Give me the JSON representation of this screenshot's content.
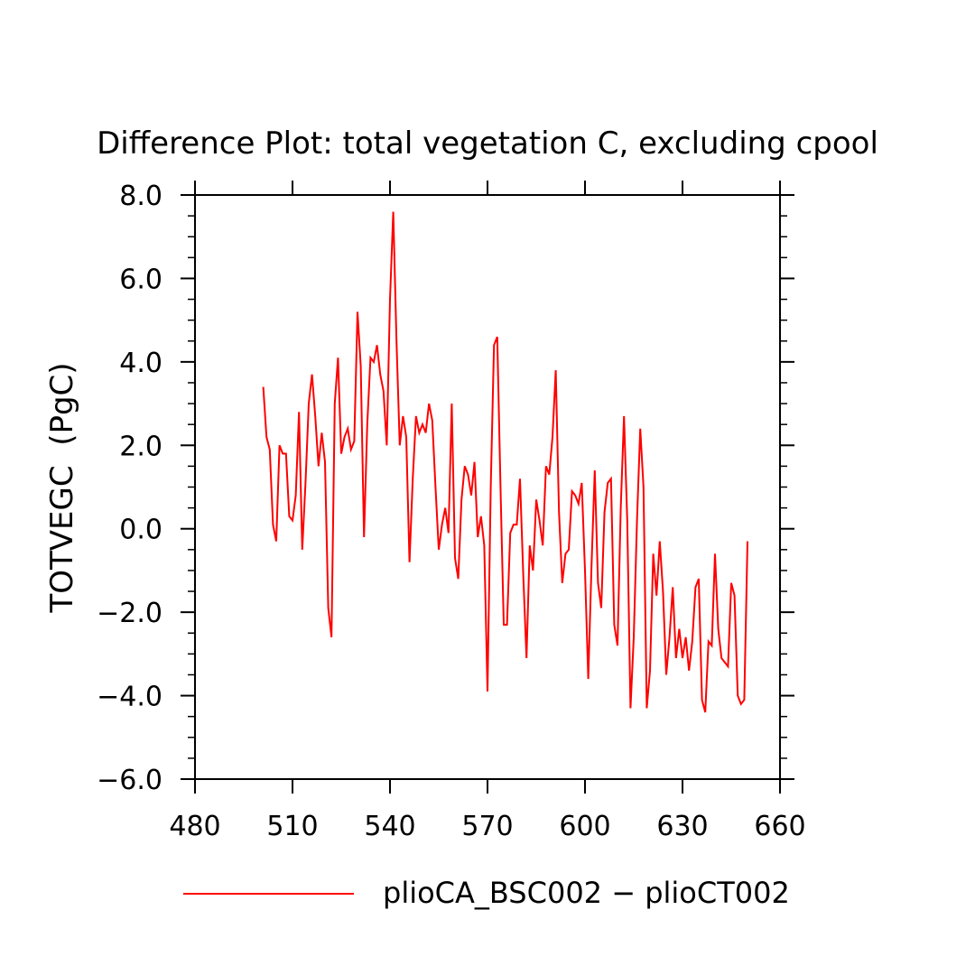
{
  "chart_data": {
    "type": "line",
    "title": "Difference Plot: total vegetation C, excluding cpool",
    "xlabel": "",
    "ylabel": "TOTVEGC  (PgC)",
    "xlim": [
      480,
      660
    ],
    "ylim": [
      -6,
      8
    ],
    "x_ticks": [
      480,
      510,
      540,
      570,
      600,
      630,
      660
    ],
    "x_tick_labels": [
      "480",
      "510",
      "540",
      "570",
      "600",
      "630",
      "660"
    ],
    "y_ticks": [
      -6,
      -4,
      -2,
      0,
      2,
      4,
      6,
      8
    ],
    "y_tick_labels": [
      "−6.0",
      "−4.0",
      "−2.0",
      "0.0",
      "2.0",
      "4.0",
      "6.0",
      "8.0"
    ],
    "grid": false,
    "legend_position": "bottom",
    "colors": {
      "series": "#ff0000",
      "axis": "#000000"
    },
    "series": [
      {
        "name": "plioCA_BSC002 − plioCT002",
        "x": [
          501,
          502,
          503,
          504,
          505,
          506,
          507,
          508,
          509,
          510,
          511,
          512,
          513,
          514,
          515,
          516,
          517,
          518,
          519,
          520,
          521,
          522,
          523,
          524,
          525,
          526,
          527,
          528,
          529,
          530,
          531,
          532,
          533,
          534,
          535,
          536,
          537,
          538,
          539,
          540,
          541,
          542,
          543,
          544,
          545,
          546,
          547,
          548,
          549,
          550,
          551,
          552,
          553,
          554,
          555,
          556,
          557,
          558,
          559,
          560,
          561,
          562,
          563,
          564,
          565,
          566,
          567,
          568,
          569,
          570,
          571,
          572,
          573,
          574,
          575,
          576,
          577,
          578,
          579,
          580,
          581,
          582,
          583,
          584,
          585,
          586,
          587,
          588,
          589,
          590,
          591,
          592,
          593,
          594,
          595,
          596,
          597,
          598,
          599,
          600,
          601,
          602,
          603,
          604,
          605,
          606,
          607,
          608,
          609,
          610,
          611,
          612,
          613,
          614,
          615,
          616,
          617,
          618,
          619,
          620,
          621,
          622,
          623,
          624,
          625,
          626,
          627,
          628,
          629,
          630,
          631,
          632,
          633,
          634,
          635,
          636,
          637,
          638,
          639,
          640,
          641,
          642,
          643,
          644,
          645,
          646,
          647,
          648,
          649,
          650
        ],
        "values": [
          3.4,
          2.2,
          1.9,
          0.1,
          -0.3,
          2.0,
          1.8,
          1.8,
          0.3,
          0.2,
          0.8,
          2.8,
          -0.5,
          1.1,
          3.0,
          3.7,
          2.7,
          1.5,
          2.3,
          1.6,
          -1.9,
          -2.6,
          3.0,
          4.1,
          1.8,
          2.2,
          2.4,
          1.9,
          2.1,
          5.2,
          3.9,
          -0.2,
          2.5,
          4.1,
          4.0,
          4.4,
          3.7,
          3.3,
          2.0,
          5.5,
          7.6,
          4.5,
          2.0,
          2.7,
          2.2,
          -0.8,
          1.2,
          2.7,
          2.3,
          2.5,
          2.3,
          3.0,
          2.6,
          1.0,
          -0.5,
          0.1,
          0.5,
          -0.1,
          3.0,
          -0.7,
          -1.2,
          0.7,
          1.5,
          1.3,
          0.8,
          1.6,
          -0.2,
          0.3,
          -0.4,
          -3.9,
          1.0,
          4.4,
          4.6,
          1.0,
          -2.3,
          -2.3,
          -0.1,
          0.1,
          0.1,
          1.2,
          -1.1,
          -3.1,
          -0.4,
          -1.0,
          0.7,
          0.2,
          -0.4,
          1.5,
          1.3,
          2.2,
          3.8,
          0.4,
          -1.3,
          -0.6,
          -0.5,
          0.9,
          0.8,
          0.6,
          1.1,
          -1.0,
          -3.6,
          -0.9,
          1.4,
          -1.3,
          -1.9,
          0.4,
          1.1,
          1.2,
          -2.3,
          -2.8,
          0.5,
          2.7,
          0.2,
          -4.3,
          -2.6,
          0.2,
          2.4,
          1.0,
          -4.3,
          -3.4,
          -0.6,
          -1.6,
          -0.3,
          -1.5,
          -3.5,
          -2.6,
          -1.4,
          -3.1,
          -2.4,
          -3.1,
          -2.6,
          -3.4,
          -2.7,
          -1.4,
          -1.2,
          -4.1,
          -4.4,
          -2.7,
          -2.8,
          -0.6,
          -2.4,
          -3.1,
          -3.2,
          -3.3,
          -1.3,
          -1.6,
          -4.0,
          -4.2,
          -4.1,
          -0.3
        ]
      }
    ]
  }
}
